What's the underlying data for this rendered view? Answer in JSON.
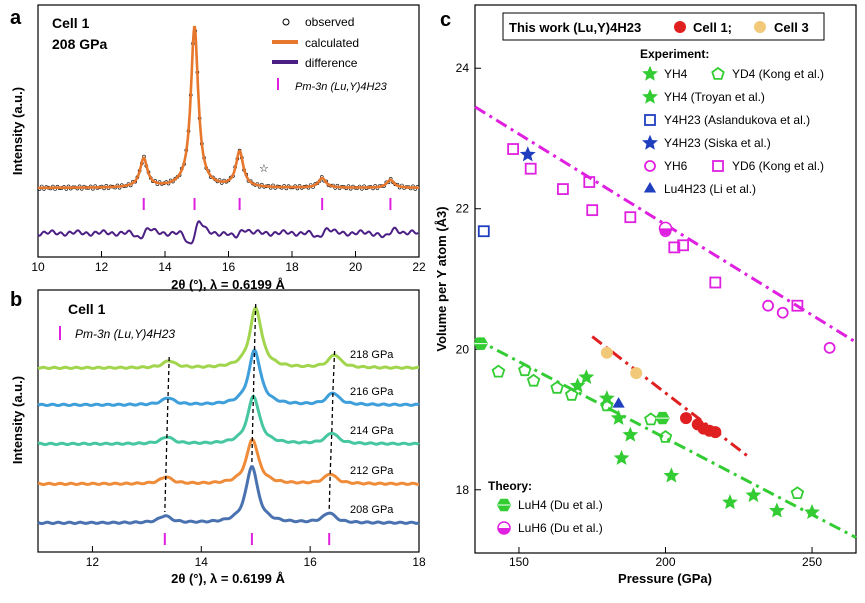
{
  "panels": {
    "a": {
      "letter": "a",
      "cell": "Cell 1",
      "pressure": "208 GPa",
      "ylabel": "Intensity (a.u.)",
      "xlabel": "2θ (°), λ = 0.6199 Å",
      "legend": [
        "observed",
        "calculated",
        "difference"
      ],
      "phase_label": "Pm-3n (Lu,Y)4H23",
      "star": "☆"
    },
    "b": {
      "letter": "b",
      "cell": "Cell 1",
      "ylabel": "Intensity (a.u.)",
      "xlabel": "2θ (°), λ = 0.6199 Å",
      "phase_label": "Pm-3n (Lu,Y)4H23"
    },
    "c": {
      "letter": "c",
      "ylabel": "Volume per Y atom (Å3)",
      "xlabel": "Pressure (GPa)",
      "this_work": "This work (Lu,Y)4H23",
      "cell1": "Cell 1;",
      "cell3": "Cell 3",
      "experiment_header": "Experiment:",
      "theory_header": "Theory:",
      "legend": [
        "YH4",
        "YD4 (Kong et al.)",
        "YH4 (Troyan et al.)",
        "Y4H23 (Aslandukova et al.)",
        "Y4H23 (Siska et al.)",
        "YH6",
        "YD6 (Kong et al.)",
        "Lu4H23 (Li et al.)",
        "LuH4 (Du et al.)",
        "LuH6 (Du et al.)"
      ]
    }
  },
  "chart_data": [
    {
      "type": "line",
      "panel": "a",
      "xlabel": "2θ (°), λ = 0.6199 Å",
      "ylabel": "Intensity (a.u.)",
      "xlim": [
        10,
        22
      ],
      "xticks": [
        10,
        12,
        14,
        16,
        18,
        20,
        22
      ],
      "peaks_calculated": [
        {
          "x": 13.33,
          "height": 0.18
        },
        {
          "x": 14.93,
          "height": 1.0
        },
        {
          "x": 16.35,
          "height": 0.22
        },
        {
          "x": 18.95,
          "height": 0.06
        },
        {
          "x": 21.1,
          "height": 0.05
        }
      ],
      "reflection_ticks": [
        13.33,
        14.93,
        16.35,
        18.95,
        21.1
      ],
      "series": [
        {
          "name": "observed",
          "marker": "open-circle",
          "color": "#000000"
        },
        {
          "name": "calculated",
          "color": "#E8772E"
        },
        {
          "name": "difference",
          "color": "#4B1F84"
        }
      ]
    },
    {
      "type": "line",
      "panel": "b",
      "xlabel": "2θ (°), λ = 0.6199 Å",
      "ylabel": "Intensity (a.u.)",
      "xlim": [
        11,
        18
      ],
      "xticks": [
        12,
        14,
        16,
        18
      ],
      "reflection_ticks": [
        13.33,
        14.93,
        16.35
      ],
      "series": [
        {
          "name": "218 GPa",
          "color": "#A2D54E",
          "peaks": [
            13.41,
            15.0,
            16.45
          ]
        },
        {
          "name": "216 GPa",
          "color": "#3E9FDB",
          "peaks": [
            13.39,
            14.98,
            16.42
          ]
        },
        {
          "name": "214 GPa",
          "color": "#46C7A1",
          "peaks": [
            13.37,
            14.96,
            16.4
          ]
        },
        {
          "name": "212 GPa",
          "color": "#EE8C3A",
          "peaks": [
            13.35,
            14.94,
            16.37
          ]
        },
        {
          "name": "208 GPa",
          "color": "#4A72B0",
          "peaks": [
            13.33,
            14.93,
            16.35
          ]
        }
      ]
    },
    {
      "type": "scatter",
      "panel": "c",
      "xlabel": "Pressure (GPa)",
      "ylabel": "Volume per Y atom (Å3)",
      "xlim": [
        135,
        265
      ],
      "ylim": [
        17.1,
        24.9
      ],
      "xticks": [
        150,
        200,
        250
      ],
      "yticks": [
        18,
        20,
        22,
        24
      ],
      "series": [
        {
          "name": "Cell 1",
          "marker": "filled-circle",
          "color": "#E02020",
          "points": [
            [
              207,
              19.02
            ],
            [
              211,
              18.93
            ],
            [
              213,
              18.87
            ],
            [
              215,
              18.84
            ],
            [
              217,
              18.82
            ]
          ]
        },
        {
          "name": "Cell 3",
          "marker": "filled-circle",
          "color": "#F2C879",
          "points": [
            [
              180,
              19.95
            ],
            [
              190,
              19.66
            ]
          ]
        },
        {
          "name": "YH4",
          "marker": "star",
          "color": "#33CC33",
          "points": [
            [
              173,
              19.6
            ],
            [
              180,
              19.3
            ],
            [
              185,
              18.45
            ],
            [
              202,
              18.2
            ],
            [
              222,
              17.82
            ],
            [
              230,
              17.92
            ],
            [
              238,
              17.7
            ],
            [
              250,
              17.68
            ]
          ]
        },
        {
          "name": "YD4 (Kong et al.)",
          "marker": "open-pentagon",
          "color": "#33CC33",
          "points": [
            [
              143,
              19.68
            ],
            [
              152,
              19.7
            ],
            [
              155,
              19.55
            ],
            [
              163,
              19.45
            ],
            [
              168,
              19.35
            ],
            [
              180,
              19.2
            ],
            [
              195,
              19.0
            ],
            [
              200,
              18.75
            ],
            [
              245,
              17.95
            ]
          ]
        },
        {
          "name": "YH4 (Troyan et al.)",
          "marker": "star",
          "color": "#33CC33",
          "points": [
            [
              170,
              19.48
            ],
            [
              184,
              19.02
            ],
            [
              188,
              18.78
            ]
          ]
        },
        {
          "name": "Y4H23 (Aslandukova et al.)",
          "marker": "open-square",
          "color": "#1F3FBF",
          "points": [
            [
              138,
              21.68
            ]
          ]
        },
        {
          "name": "Y4H23 (Siska et al.)",
          "marker": "star",
          "color": "#1F3FBF",
          "points": [
            [
              153,
              22.77
            ]
          ]
        },
        {
          "name": "YH6",
          "marker": "open-circle",
          "color": "#E020E0",
          "points": [
            [
              200,
              21.68
            ],
            [
              235,
              20.62
            ],
            [
              240,
              20.52
            ],
            [
              256,
              20.02
            ]
          ]
        },
        {
          "name": "YD6 (Kong et al.)",
          "marker": "open-square",
          "color": "#E020E0",
          "points": [
            [
              148,
              22.85
            ],
            [
              154,
              22.57
            ],
            [
              165,
              22.28
            ],
            [
              174,
              22.38
            ],
            [
              175,
              21.98
            ],
            [
              188,
              21.88
            ],
            [
              203,
              21.45
            ],
            [
              206,
              21.48
            ],
            [
              217,
              20.95
            ],
            [
              245,
              20.62
            ]
          ]
        },
        {
          "name": "Lu4H23 (Li et al.)",
          "marker": "filled-triangle",
          "color": "#1F3FBF",
          "points": [
            [
              184,
              19.22
            ]
          ]
        },
        {
          "name": "LuH4 (Du et al.)",
          "marker": "half-hexagon",
          "color": "#33CC33",
          "points": [
            [
              137,
              20.08
            ],
            [
              199,
              19.02
            ]
          ]
        },
        {
          "name": "LuH6 (Du et al.)",
          "marker": "half-circle",
          "color": "#E020E0",
          "points": [
            [
              200,
              21.72
            ]
          ]
        }
      ],
      "fits": [
        {
          "name": "YH6/YD6 fit",
          "color": "#E020E0",
          "style": "dash-dot",
          "points": [
            [
              135,
              23.45
            ],
            [
              265,
              20.1
            ]
          ]
        },
        {
          "name": "YH4/YD4 fit",
          "color": "#33CC33",
          "style": "dash-dot",
          "points": [
            [
              135,
              20.15
            ],
            [
              265,
              17.32
            ]
          ]
        },
        {
          "name": "This work fit",
          "color": "#E02020",
          "style": "dash-dot",
          "points": [
            [
              175,
              20.18
            ],
            [
              228,
              18.48
            ]
          ]
        }
      ]
    }
  ]
}
